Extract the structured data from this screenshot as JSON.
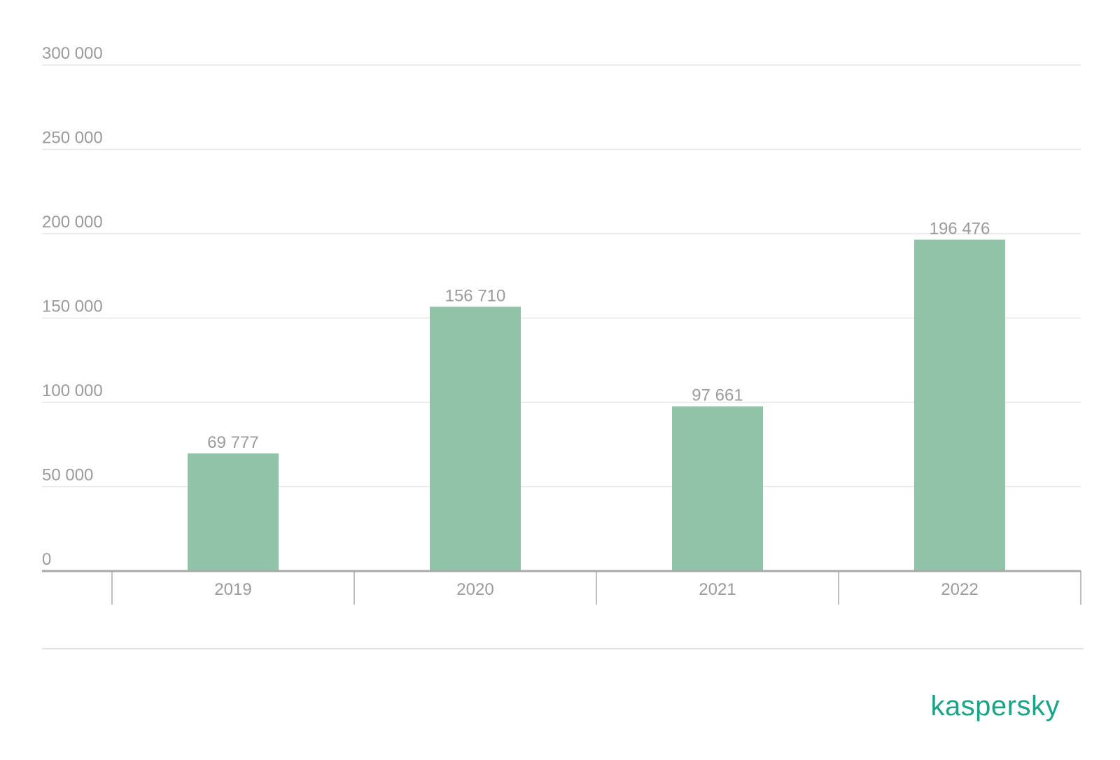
{
  "chart_data": {
    "type": "bar",
    "categories": [
      "2019",
      "2020",
      "2021",
      "2022"
    ],
    "values": [
      69777,
      156710,
      97661,
      196476
    ],
    "value_labels": [
      "69 777",
      "156 710",
      "97 661",
      "196 476"
    ],
    "y_ticks": [
      0,
      50000,
      100000,
      150000,
      200000,
      250000,
      300000
    ],
    "y_tick_labels": [
      "0",
      "50 000",
      "100 000",
      "150 000",
      "200 000",
      "250 000",
      "300 000"
    ],
    "ylim": [
      0,
      300000
    ],
    "grid": true,
    "legend": "none",
    "title": "",
    "xlabel": "",
    "ylabel": ""
  },
  "colors": {
    "bar": "#91c3a8",
    "grid": "#e6e6e6",
    "axis": "#a9a9a9",
    "text": "#9b9b9b",
    "brand": "#1aa386"
  },
  "brand": {
    "logo_text": "kaspersky"
  }
}
